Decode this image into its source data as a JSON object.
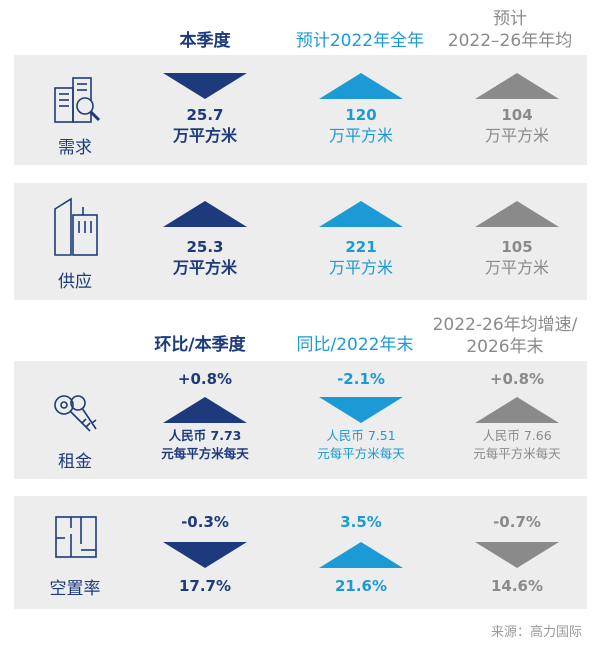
{
  "header1": {
    "current_quarter": "本季度",
    "forecast_2022": "预计2022年全年",
    "forecast_avg_line1": "预计",
    "forecast_avg_line2": "2022–26年年均"
  },
  "header2": {
    "qoq": "环比/本季度",
    "yoy": "同比/2022年末",
    "growth_line1": "2022-26年均增速/",
    "growth_line2": "2026年末"
  },
  "demand": {
    "label": "需求",
    "current": {
      "value": "25.7",
      "unit": "万平方米",
      "direction": "down"
    },
    "forecast_2022": {
      "value": "120",
      "unit": "万平方米",
      "direction": "up"
    },
    "forecast_avg": {
      "value": "104",
      "unit": "万平方米",
      "direction": "up"
    }
  },
  "supply": {
    "label": "供应",
    "current": {
      "value": "25.3",
      "unit": "万平方米",
      "direction": "up"
    },
    "forecast_2022": {
      "value": "221",
      "unit": "万平方米",
      "direction": "up"
    },
    "forecast_avg": {
      "value": "105",
      "unit": "万平方米",
      "direction": "up"
    }
  },
  "rent": {
    "label": "租金",
    "qoq": {
      "change": "+0.8%",
      "price_line1": "人民币 7.73",
      "price_line2": "元每平方米每天",
      "direction": "up"
    },
    "yoy": {
      "change": "-2.1%",
      "price_line1": "人民币 7.51",
      "price_line2": "元每平方米每天",
      "direction": "down"
    },
    "growth": {
      "change": "+0.8%",
      "price_line1": "人民币 7.66",
      "price_line2": "元每平方米每天",
      "direction": "up"
    }
  },
  "vacancy": {
    "label": "空置率",
    "qoq": {
      "change": "-0.3%",
      "rate": "17.7%",
      "direction": "down"
    },
    "yoy": {
      "change": "3.5%",
      "rate": "21.6%",
      "direction": "up"
    },
    "growth": {
      "change": "-0.7%",
      "rate": "14.6%",
      "direction": "down"
    }
  },
  "source": "来源：高力国际",
  "colors": {
    "navy": "#1c3a7c",
    "cyan": "#1b9ad6",
    "gray": "#8a8a8a",
    "panel": "#ededed"
  },
  "icons": {
    "demand": "building-search-icon",
    "supply": "building-outline-icon",
    "rent": "keys-icon",
    "vacancy": "floorplan-icon"
  }
}
